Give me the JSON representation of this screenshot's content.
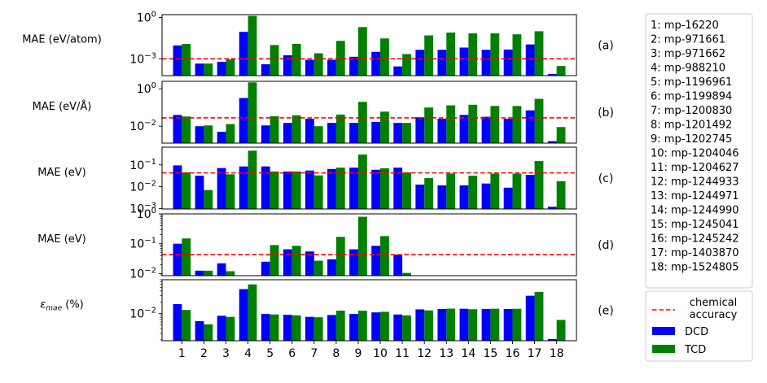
{
  "colors": {
    "dcd": "#0000ff",
    "tcd": "#008000",
    "accuracy": "#ff0000"
  },
  "chart_data": [
    {
      "type": "bar",
      "panel_label": "(a)",
      "ylabel": "MAE (eV/atom)",
      "yscale": "log",
      "ylim": [
        6e-05,
        1.6
      ],
      "ticks": [
        {
          "v": 0.001,
          "t": "10",
          "e": "−3"
        },
        {
          "v": 1,
          "t": "10",
          "e": "0"
        }
      ],
      "minor": false,
      "accuracy": 0.001,
      "categories": [
        "1",
        "2",
        "3",
        "4",
        "5",
        "6",
        "7",
        "8",
        "9",
        "10",
        "11",
        "12",
        "13",
        "14",
        "15",
        "16",
        "17",
        "18"
      ],
      "series": [
        {
          "name": "DCD",
          "values": [
            0.0093,
            0.00045,
            0.0006,
            0.09,
            0.0004,
            0.0018,
            0.00085,
            0.00085,
            0.0014,
            0.0032,
            0.00028,
            0.0045,
            0.0045,
            0.0065,
            0.0045,
            0.0047,
            0.011,
            8e-05
          ]
        },
        {
          "name": "TCD",
          "values": [
            0.012,
            0.00045,
            0.0009,
            1.3,
            0.01,
            0.012,
            0.0025,
            0.02,
            0.2,
            0.03,
            0.0022,
            0.05,
            0.08,
            0.07,
            0.07,
            0.06,
            0.1,
            0.0003
          ]
        }
      ]
    },
    {
      "type": "bar",
      "panel_label": "(b)",
      "ylabel": "MAE (eV/Å)",
      "yscale": "log",
      "ylim": [
        0.00125,
        2.5
      ],
      "ticks": [
        {
          "v": 0.01,
          "t": "10",
          "e": "−2"
        },
        {
          "v": 1,
          "t": "10",
          "e": "0"
        }
      ],
      "minor": false,
      "accuracy": 0.028,
      "categories": [
        "1",
        "2",
        "3",
        "4",
        "5",
        "6",
        "7",
        "8",
        "9",
        "10",
        "11",
        "12",
        "13",
        "14",
        "15",
        "16",
        "17",
        "18"
      ],
      "series": [
        {
          "name": "DCD",
          "values": [
            0.04,
            0.01,
            0.005,
            0.32,
            0.011,
            0.015,
            0.025,
            0.015,
            0.015,
            0.017,
            0.015,
            0.03,
            0.025,
            0.04,
            0.032,
            0.025,
            0.07,
            0.0016
          ]
        },
        {
          "name": "TCD",
          "values": [
            0.033,
            0.011,
            0.013,
            2.2,
            0.034,
            0.038,
            0.01,
            0.042,
            0.2,
            0.06,
            0.015,
            0.1,
            0.13,
            0.14,
            0.12,
            0.12,
            0.29,
            0.009
          ]
        }
      ]
    },
    {
      "type": "bar",
      "panel_label": "(c)",
      "ylabel": "MAE (eV)",
      "yscale": "log",
      "ylim": [
        0.00095,
        0.65
      ],
      "ticks": [
        {
          "v": 0.001,
          "t": "10",
          "e": "−3"
        },
        {
          "v": 0.01,
          "t": "10",
          "e": "−2"
        },
        {
          "v": 0.1,
          "t": "10",
          "e": "−1"
        }
      ],
      "minor": false,
      "accuracy": 0.043,
      "categories": [
        "1",
        "2",
        "3",
        "4",
        "5",
        "6",
        "7",
        "8",
        "9",
        "10",
        "11",
        "12",
        "13",
        "14",
        "15",
        "16",
        "17",
        "18"
      ],
      "series": [
        {
          "name": "DCD",
          "values": [
            0.095,
            0.032,
            0.072,
            0.085,
            0.085,
            0.05,
            0.055,
            0.065,
            0.075,
            0.06,
            0.075,
            0.0125,
            0.0115,
            0.0115,
            0.014,
            0.009,
            0.035,
            0.0012
          ]
        },
        {
          "name": "TCD",
          "values": [
            0.045,
            0.007,
            0.037,
            0.45,
            0.05,
            0.05,
            0.033,
            0.075,
            0.3,
            0.07,
            0.045,
            0.025,
            0.04,
            0.032,
            0.04,
            0.04,
            0.15,
            0.018
          ]
        }
      ]
    },
    {
      "type": "bar",
      "panel_label": "(d)",
      "ylabel": "MAE (eV)",
      "yscale": "log",
      "ylim": [
        0.0085,
        1.0
      ],
      "ticks": [
        {
          "v": 0.01,
          "t": "10",
          "e": "−2"
        },
        {
          "v": 0.1,
          "t": "10",
          "e": "−1"
        },
        {
          "v": 1,
          "t": "10",
          "e": "0"
        }
      ],
      "minor": true,
      "accuracy": 0.043,
      "categories": [
        "1",
        "2",
        "3",
        "4",
        "5",
        "6",
        "7",
        "8",
        "9",
        "10",
        "11",
        "12",
        "13",
        "14",
        "15",
        "16",
        "17",
        "18"
      ],
      "series": [
        {
          "name": "DCD",
          "values": [
            0.1,
            0.0125,
            0.022,
            0,
            0.025,
            0.065,
            0.055,
            0.03,
            0.065,
            0.085,
            0.043,
            0,
            0,
            0,
            0,
            0,
            0,
            0
          ]
        },
        {
          "name": "TCD",
          "values": [
            0.15,
            0.0125,
            0.012,
            0,
            0.09,
            0.085,
            0.027,
            0.17,
            0.8,
            0.18,
            0.0105,
            0,
            0,
            0,
            0,
            0,
            0,
            0
          ]
        }
      ]
    },
    {
      "type": "bar",
      "panel_label": "(e)",
      "ylabel_text": "ε",
      "ylabel_sub": "mae",
      "ylabel_unit": " (%)",
      "yscale": "log",
      "ylim": [
        0.0019,
        0.08
      ],
      "ticks": [
        {
          "v": 0.01,
          "t": "10",
          "e": "−2"
        }
      ],
      "minor": true,
      "accuracy": null,
      "categories": [
        "1",
        "2",
        "3",
        "4",
        "5",
        "6",
        "7",
        "8",
        "9",
        "10",
        "11",
        "12",
        "13",
        "14",
        "15",
        "16",
        "17",
        "18"
      ],
      "series": [
        {
          "name": "DCD",
          "values": [
            0.018,
            0.0063,
            0.0088,
            0.045,
            0.0098,
            0.0093,
            0.0082,
            0.0092,
            0.0098,
            0.0108,
            0.0095,
            0.013,
            0.0133,
            0.0135,
            0.0133,
            0.0133,
            0.03,
            0.0021
          ]
        },
        {
          "name": "TCD",
          "values": [
            0.0125,
            0.0052,
            0.0082,
            0.06,
            0.0095,
            0.009,
            0.008,
            0.012,
            0.012,
            0.0112,
            0.009,
            0.0122,
            0.0136,
            0.0131,
            0.0135,
            0.0135,
            0.038,
            0.0068
          ]
        }
      ]
    }
  ],
  "materials": [
    "1: mp-16220",
    "2: mp-971661",
    "3: mp-971662",
    "4: mp-988210",
    "5: mp-1196961",
    "6: mp-1199894",
    "7: mp-1200830",
    "8: mp-1201492",
    "9: mp-1202745",
    "10: mp-1204046",
    "11: mp-1204627",
    "12: mp-1244933",
    "13: mp-1244971",
    "14: mp-1244990",
    "15: mp-1245041",
    "16: mp-1245242",
    "17: mp-1403870",
    "18: mp-1524805"
  ],
  "legend": {
    "accuracy": [
      "chemical",
      "accuracy"
    ],
    "dcd": "DCD",
    "tcd": "TCD"
  }
}
